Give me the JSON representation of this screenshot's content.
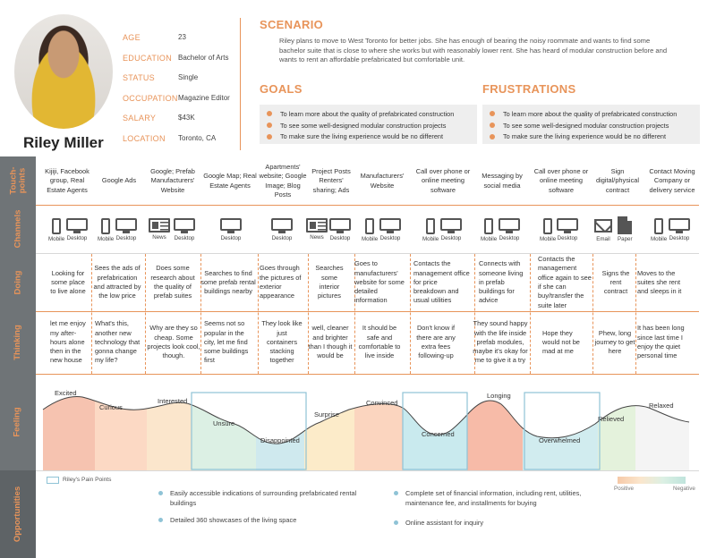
{
  "persona": {
    "name": "Riley Miller",
    "attributes": [
      {
        "label": "AGE",
        "value": "23"
      },
      {
        "label": "EDUCATION",
        "value": "Bachelor of Arts"
      },
      {
        "label": "STATUS",
        "value": "Single"
      },
      {
        "label": "OCCUPATION",
        "value": "Magazine Editor"
      },
      {
        "label": "SALARY",
        "value": "$43K"
      },
      {
        "label": "LOCATION",
        "value": "Toronto, CA"
      }
    ]
  },
  "scenario": {
    "title": "SCENARIO",
    "text": "Riley plans to move to West Toronto for better jobs. She has enough of bearing the noisy roommate and wants to find some bachelor suite that is close to where she works but with reasonably lower rent. She has heard of modular construction before and wants to rent an affordable prefabricated but comfortable unit."
  },
  "goals": {
    "title": "GOALS",
    "items": [
      "To learn more about the quality of prefabricated construction",
      "To see some well-designed modular construction projects",
      "To make sure the living experience would be no different"
    ]
  },
  "frustrations": {
    "title": "FRUSTRATIONS",
    "items": [
      "To learn more about the quality of prefabricated construction",
      "To see some well-designed modular construction projects",
      "To make sure the living experience would be no different"
    ]
  },
  "stages": {
    "touchpoints": "Touch-\npoints",
    "channels": "Channels",
    "doing": "Doing",
    "thinking": "Thinking",
    "feeling": "Feeling",
    "opportunities": "Opportunities"
  },
  "touchpoints": [
    "Kijiji, Facebook group, Real Estate Agents",
    "Google Ads",
    "Google; Prefab Manufacturers' Website",
    "Google Map; Real Estate Agents",
    "Apartments' website; Google Image; Blog Posts",
    "Project Posts Renters' sharing; Ads",
    "Manufacturers' Website",
    "Call over phone or online meeting software",
    "Messaging by social media",
    "Call over phone or online meeting software",
    "Sign digital/physical contract",
    "Contact Moving Company or delivery service"
  ],
  "channel_labels": {
    "mobile": "Mobile",
    "desktop": "Desktop",
    "news": "News",
    "email": "Email",
    "paper": "Paper"
  },
  "doing": [
    "Looking for some place to live alone",
    "Sees the ads of prefabrication and attracted by the low price",
    "Does some research about the quality of prefab suites",
    "Searches to find some prefab rental buildings nearby",
    "Goes through the pictures of exterior appearance",
    "Searches some interior pictures",
    "Goes to manufacturers' website for some detailed information",
    "Contacts the management office for price breakdown and usual utilities",
    "Connects with someone living in prefab buildings for advice",
    "Contacts the management office again to see if she can buy/transfer the suite later",
    "Signs the rent contract",
    "Moves to the suites she rent and sleeps in it"
  ],
  "thinking": [
    "let me enjoy my after-hours alone then in the new house",
    "What's this, another new technology that gonna change my life?",
    "Why are they so cheap. Some projects look cool, though.",
    "Seems not so popular in the city, let me find some buildings first",
    "They look like just containers stacking together",
    "well, cleaner and brighter than I though it would be",
    "It should be safe and comfortable to live inside",
    "Don't know if there are any extra fees following-up",
    "They sound happy with the life inside prefab modules, maybe it's okay for me to give it a try",
    "Hope they would not be mad at me",
    "Phew, long journey to get here",
    "It has been long since last time I enjoy the quiet personal time"
  ],
  "feelings": [
    "Excited",
    "Curious",
    "Interested",
    "Unsure",
    "Disappointed",
    "Surprise",
    "Convinced",
    "Concerned",
    "Longing",
    "Overwhelmed",
    "Relieved",
    "Relaxed"
  ],
  "legend": {
    "pain_points": "Riley's Pain Points",
    "positive": "Positive",
    "negative": "Negative"
  },
  "opportunities": [
    "Easily accessible indications of surrounding prefabricated rental buildings",
    "Detailed 360 showcases of the living space",
    "Complete set of financial information, including rent, utilities, maintenance fee, and installments for buying",
    "Online assistant for inquiry"
  ],
  "colors": {
    "accent": "#e8945a",
    "stage_bg": "#6f7477",
    "pain_point": "#8fc3d6",
    "positive": "#f6c9a8",
    "negative": "#bfe4dc"
  },
  "icons": [
    "mobile-icon",
    "desktop-icon",
    "news-icon",
    "email-icon",
    "paper-icon"
  ]
}
